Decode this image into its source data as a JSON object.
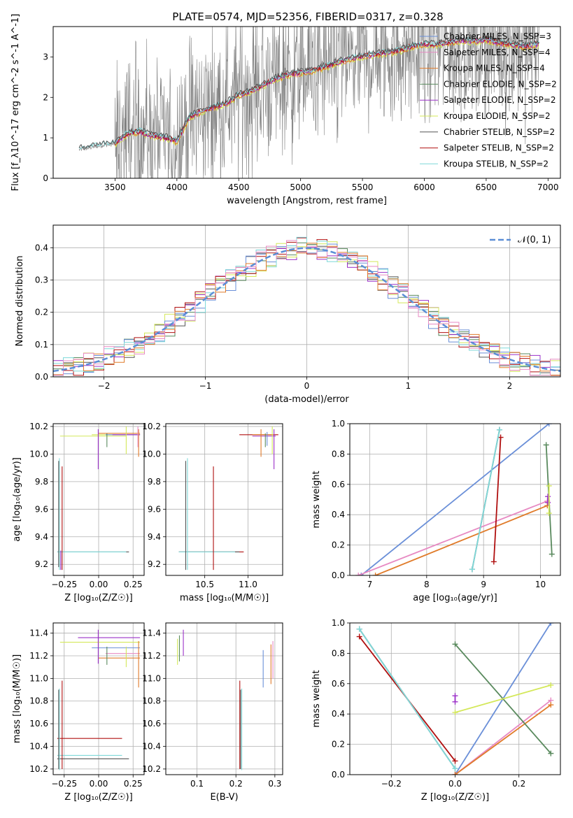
{
  "figure": {
    "title": "PLATE=0574, MJD=52356, FIBERID=0317, z=0.328"
  },
  "colors": {
    "chabrier_miles": "#6a8fd8",
    "salpeter_miles": "#e78ac3",
    "kroupa_miles": "#e07b2a",
    "chabrier_elodie": "#5a8a5e",
    "salpeter_elodie": "#9b30c8",
    "kroupa_elodie": "#d4e85a",
    "chabrier_stelib": "#555555",
    "salpeter_stelib": "#b01010",
    "kroupa_stelib": "#7fd9d9",
    "data_gray": "#808080",
    "normal": "#5b8ed6"
  },
  "chart_data": [
    {
      "id": "spectrum",
      "type": "line",
      "xlabel": "wavelength [Angstrom, rest frame]",
      "ylabel": "Flux [f_λ10^-17 erg cm^-2 s^-1 A^-1]",
      "xlim": [
        3000,
        7100
      ],
      "ylim": [
        0,
        3.75
      ],
      "xticks": [
        3500,
        4000,
        4500,
        5000,
        5500,
        6000,
        6500,
        7000
      ],
      "yticks": [
        0,
        1,
        2,
        3
      ],
      "legend_position": "top-right",
      "legend": [
        {
          "label": "Chabrier MILES, N_SSP=3",
          "color_key": "chabrier_miles"
        },
        {
          "label": "Salpeter MILES, N_SSP=4",
          "color_key": "salpeter_miles"
        },
        {
          "label": "Kroupa MILES, N_SSP=4",
          "color_key": "kroupa_miles"
        },
        {
          "label": "Chabrier ELODIE, N_SSP=2",
          "color_key": "chabrier_elodie"
        },
        {
          "label": "Salpeter ELODIE, N_SSP=2",
          "color_key": "salpeter_elodie"
        },
        {
          "label": "Kroupa ELODIE, N_SSP=2",
          "color_key": "kroupa_elodie"
        },
        {
          "label": "Chabrier STELIB, N_SSP=2",
          "color_key": "chabrier_stelib"
        },
        {
          "label": "Salpeter STELIB, N_SSP=2",
          "color_key": "salpeter_stelib"
        },
        {
          "label": "Kroupa STELIB, N_SSP=2",
          "color_key": "kroupa_stelib"
        }
      ],
      "model_continuum": {
        "x": [
          3200,
          3400,
          3500,
          3600,
          3700,
          3800,
          3900,
          4000,
          4100,
          4200,
          4300,
          4400,
          4500,
          4600,
          4700,
          4800,
          4900,
          5000,
          5100,
          5200,
          5300,
          5400,
          5500,
          5600,
          5700,
          5800,
          5900,
          6000,
          6100,
          6200,
          6300,
          6400,
          6500,
          6600,
          6700,
          6800,
          6900
        ],
        "y": [
          0.7,
          0.82,
          0.85,
          1.1,
          1.15,
          1.05,
          1.0,
          0.9,
          1.5,
          1.65,
          1.75,
          1.85,
          2.05,
          2.15,
          2.3,
          2.45,
          2.55,
          2.6,
          2.65,
          2.75,
          2.85,
          2.95,
          3.0,
          3.05,
          3.1,
          3.15,
          3.25,
          3.3,
          3.3,
          3.35,
          3.4,
          3.38,
          3.42,
          3.35,
          3.3,
          3.25,
          3.3
        ]
      },
      "data_noise_start": 3500
    },
    {
      "id": "residuals",
      "type": "step",
      "xlabel": "(data-model)/error",
      "ylabel": "Normed distribution",
      "xlim": [
        -2.5,
        2.5
      ],
      "ylim": [
        0,
        0.47
      ],
      "xticks": [
        -2,
        -1,
        0,
        1,
        2
      ],
      "yticks": [
        0.0,
        0.1,
        0.2,
        0.3,
        0.4
      ],
      "legend_position": "top-right",
      "legend_label": "𝒩(0, 1)",
      "bin_start": -2.5,
      "bin_width": 0.1
    },
    {
      "id": "age_vs_Z",
      "type": "errorbar",
      "xlabel": "Z [log₁₀(Z/Z☉)]",
      "ylabel": "age  [log₁₀(age/yr)]",
      "xlim": [
        -0.33,
        0.33
      ],
      "ylim": [
        9.12,
        10.22
      ],
      "xticks": [
        -0.25,
        0.0,
        0.25
      ],
      "xtick_labels": [
        "−0.25",
        "0.00",
        "0.25"
      ],
      "yticks": [
        9.2,
        9.4,
        9.6,
        9.8,
        10.0,
        10.2
      ]
    },
    {
      "id": "age_vs_mass",
      "type": "errorbar",
      "xlabel": "mass [log₁₀(M/M☉)]",
      "xlim": [
        10.05,
        11.4
      ],
      "ylim": [
        9.12,
        10.22
      ],
      "xticks": [
        10.5,
        11.0
      ],
      "xtick_labels": [
        "10.5",
        "11.0"
      ],
      "yticks": [
        9.2,
        9.4,
        9.6,
        9.8,
        10.0,
        10.2
      ]
    },
    {
      "id": "weight_vs_age",
      "type": "line",
      "xlabel": "age  [log₁₀(age/yr)]",
      "ylabel": "mass weight",
      "xlim": [
        6.65,
        10.35
      ],
      "ylim": [
        0,
        1.0
      ],
      "xticks": [
        7,
        8,
        9,
        10
      ],
      "yticks": [
        0.0,
        0.2,
        0.4,
        0.6,
        0.8,
        1.0
      ],
      "series": [
        {
          "color_key": "chabrier_miles",
          "x": [
            6.85,
            10.15
          ],
          "y": [
            0.0,
            1.0
          ]
        },
        {
          "color_key": "salpeter_miles",
          "x": [
            6.8,
            10.12
          ],
          "y": [
            0.0,
            0.49
          ]
        },
        {
          "color_key": "kroupa_miles",
          "x": [
            7.1,
            10.12
          ],
          "y": [
            0.0,
            0.46
          ]
        },
        {
          "color_key": "chabrier_elodie",
          "x": [
            10.1,
            10.2
          ],
          "y": [
            0.86,
            0.14
          ]
        },
        {
          "color_key": "salpeter_elodie",
          "x": [
            10.13,
            10.13
          ],
          "y": [
            0.48,
            0.52
          ]
        },
        {
          "color_key": "kroupa_elodie",
          "x": [
            10.15,
            10.15
          ],
          "y": [
            0.41,
            0.59
          ]
        },
        {
          "color_key": "chabrier_stelib",
          "x": [
            8.8,
            9.28
          ],
          "y": [
            0.04,
            0.96
          ]
        },
        {
          "color_key": "salpeter_stelib",
          "x": [
            9.18,
            9.3
          ],
          "y": [
            0.09,
            0.91
          ]
        },
        {
          "color_key": "kroupa_stelib",
          "x": [
            8.8,
            9.28
          ],
          "y": [
            0.04,
            0.96
          ]
        }
      ]
    },
    {
      "id": "mass_vs_Z",
      "type": "errorbar",
      "xlabel": "Z [log₁₀(Z/Z☉)]",
      "ylabel": "mass [log₁₀(M/M☉)]",
      "xlim": [
        -0.33,
        0.33
      ],
      "ylim": [
        10.15,
        11.49
      ],
      "xticks": [
        -0.25,
        0.0,
        0.25
      ],
      "xtick_labels": [
        "−0.25",
        "0.00",
        "0.25"
      ],
      "yticks": [
        10.2,
        10.4,
        10.6,
        10.8,
        11.0,
        11.2,
        11.4
      ]
    },
    {
      "id": "mass_vs_ebv",
      "type": "errorbar",
      "xlabel": "E(B-V)",
      "xlim": [
        0.02,
        0.32
      ],
      "ylim": [
        10.15,
        11.49
      ],
      "xticks": [
        0.1,
        0.2,
        0.3
      ],
      "xtick_labels": [
        "0.1",
        "0.2",
        "0.3"
      ],
      "yticks": [
        10.2,
        10.4,
        10.6,
        10.8,
        11.0,
        11.2,
        11.4
      ]
    },
    {
      "id": "weight_vs_Z",
      "type": "line",
      "xlabel": "Z [log₁₀(Z/Z☉)]",
      "ylabel": "mass weight",
      "xlim": [
        -0.33,
        0.33
      ],
      "ylim": [
        0,
        1.0
      ],
      "xticks": [
        -0.2,
        0.0,
        0.2
      ],
      "xtick_labels": [
        "−0.2",
        "0.0",
        "0.2"
      ],
      "yticks": [
        0.0,
        0.2,
        0.4,
        0.6,
        0.8,
        1.0
      ],
      "series": [
        {
          "color_key": "chabrier_miles",
          "x": [
            0.0,
            0.3
          ],
          "y": [
            0.0,
            1.0
          ]
        },
        {
          "color_key": "salpeter_miles",
          "x": [
            0.0,
            0.3
          ],
          "y": [
            0.0,
            0.49
          ]
        },
        {
          "color_key": "kroupa_miles",
          "x": [
            0.0,
            0.3
          ],
          "y": [
            0.0,
            0.46
          ]
        },
        {
          "color_key": "chabrier_elodie",
          "x": [
            0.0,
            0.3
          ],
          "y": [
            0.86,
            0.14
          ]
        },
        {
          "color_key": "salpeter_elodie",
          "x": [
            0.0,
            0.0
          ],
          "y": [
            0.48,
            0.52
          ]
        },
        {
          "color_key": "kroupa_elodie",
          "x": [
            0.0,
            0.3
          ],
          "y": [
            0.41,
            0.59
          ]
        },
        {
          "color_key": "chabrier_stelib",
          "x": [
            -0.3,
            0.0
          ],
          "y": [
            0.96,
            0.04
          ]
        },
        {
          "color_key": "salpeter_stelib",
          "x": [
            -0.3,
            0.0
          ],
          "y": [
            0.91,
            0.09
          ]
        },
        {
          "color_key": "kroupa_stelib",
          "x": [
            -0.3,
            0.0
          ],
          "y": [
            0.96,
            0.04
          ]
        }
      ]
    }
  ]
}
